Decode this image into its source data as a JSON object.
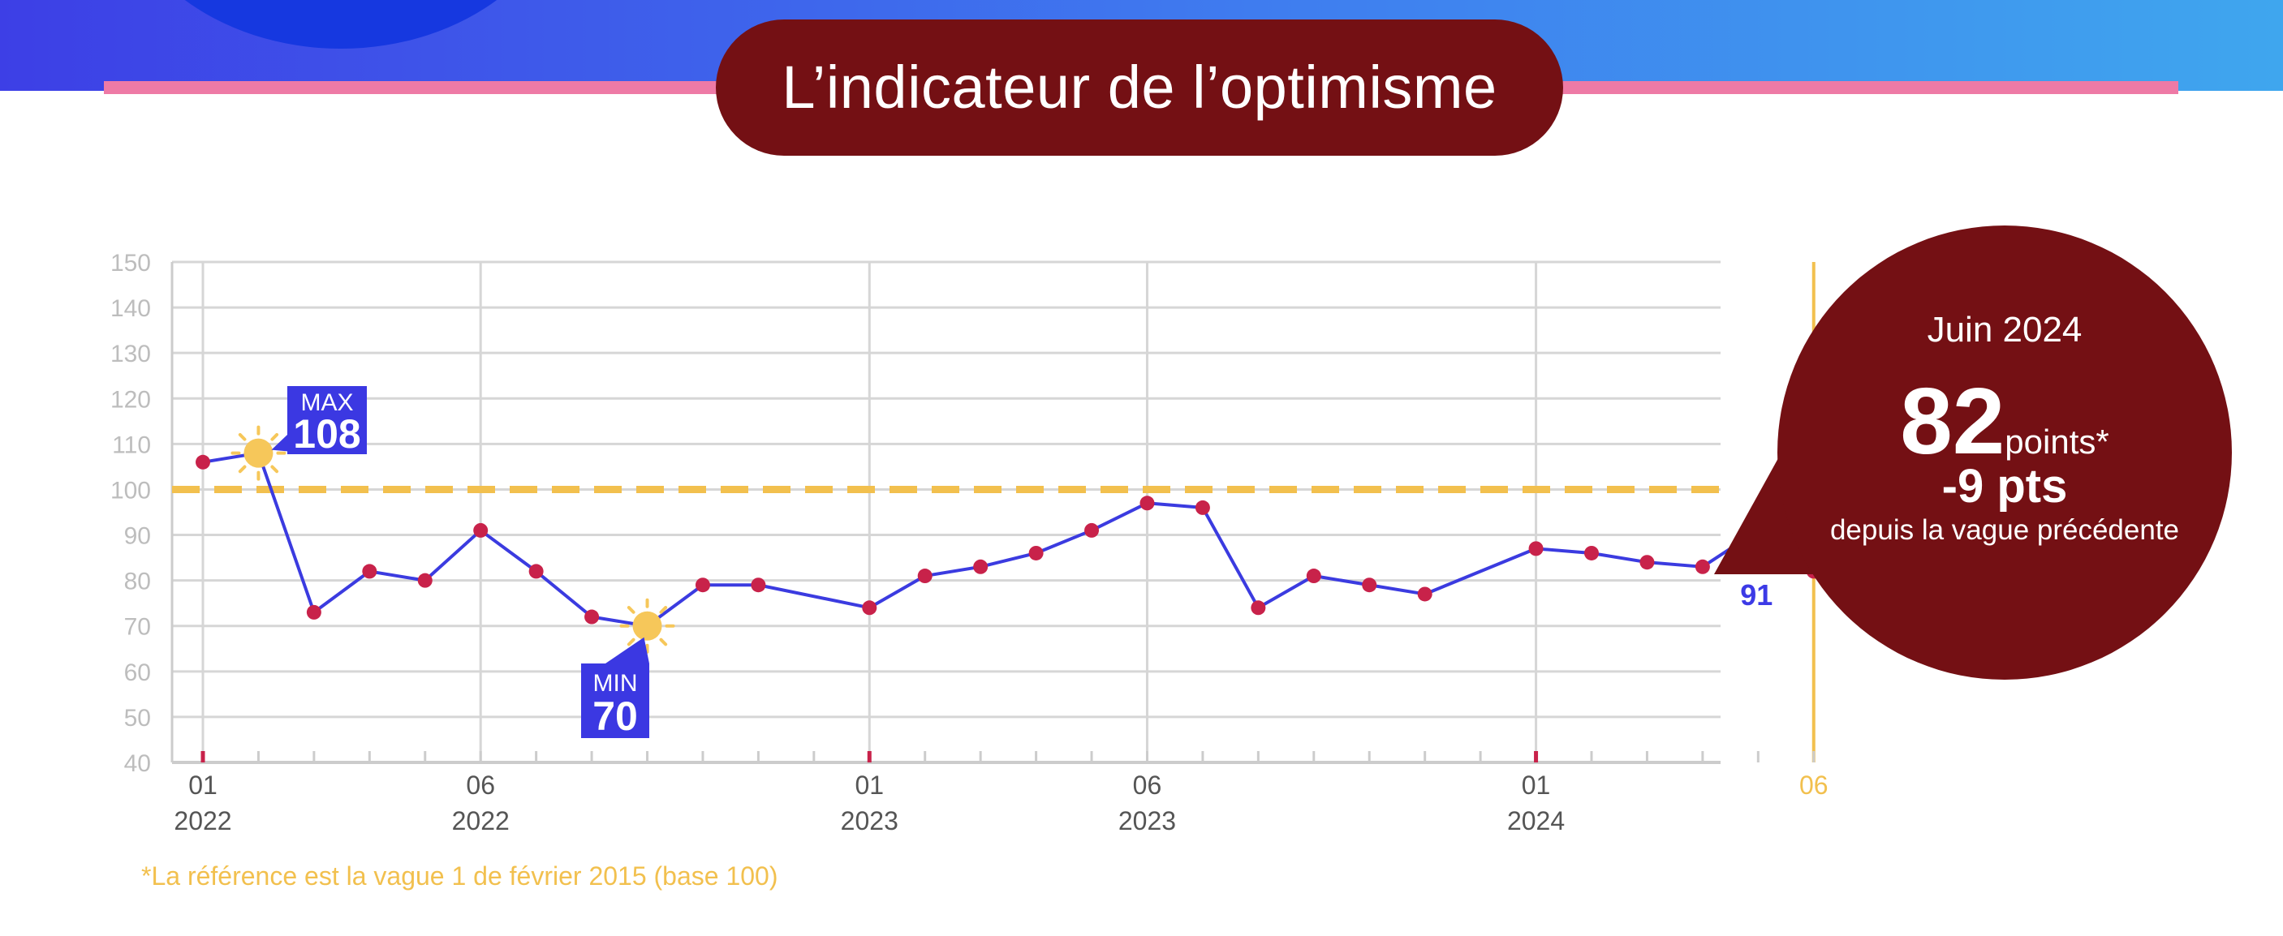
{
  "header": {
    "title": "L’indicateur de l’optimisme"
  },
  "callout": {
    "period": "Juin 2024",
    "value": "82",
    "unit": "points*",
    "delta": "-9 pts",
    "delta_note": "depuis la vague précédente"
  },
  "footnote": "*La référence est la vague 1 de février 2015 (base 100)",
  "colors": {
    "line": "#3b3be0",
    "point": "#c8224a",
    "reference": "#f2c04e",
    "callout": "#741014",
    "tag": "#3b38e2",
    "sun": "#f6c75a"
  },
  "chart_data": {
    "type": "line",
    "title": "L’indicateur de l’optimisme",
    "xlabel": "",
    "ylabel": "",
    "ylim": [
      40,
      150
    ],
    "y_ticks": [
      150,
      140,
      130,
      120,
      110,
      100,
      90,
      80,
      70,
      60,
      50,
      40
    ],
    "grid": true,
    "reference_line": 100,
    "series": [
      {
        "name": "Indicateur de l’optimisme",
        "values": [
          106,
          108,
          73,
          82,
          80,
          91,
          82,
          72,
          70,
          79,
          79,
          74,
          81,
          83,
          86,
          91,
          97,
          96,
          74,
          81,
          79,
          77,
          87,
          86,
          84,
          83,
          91,
          82
        ]
      }
    ],
    "point_months": [
      0,
      1,
      2,
      3,
      4,
      5,
      6,
      7,
      8,
      9,
      10,
      12,
      13,
      14,
      15,
      16,
      17,
      18,
      19,
      20,
      21,
      22,
      24,
      25,
      26,
      27,
      28,
      29
    ],
    "x_ticks": [
      {
        "month": 0,
        "line1": "01",
        "line2": "2022"
      },
      {
        "month": 5,
        "line1": "06",
        "line2": "2022"
      },
      {
        "month": 12,
        "line1": "01",
        "line2": "2023"
      },
      {
        "month": 17,
        "line1": "06",
        "line2": "2023"
      },
      {
        "month": 24,
        "line1": "01",
        "line2": "2024"
      },
      {
        "month": 29,
        "line1": "06",
        "line2": "",
        "highlight": true
      }
    ],
    "annotations": {
      "max": {
        "label": "MAX",
        "value": "108",
        "index": 1
      },
      "min": {
        "label": "MIN",
        "value": "70",
        "index": 8
      },
      "previous": {
        "value": "91",
        "index": 26
      }
    }
  }
}
